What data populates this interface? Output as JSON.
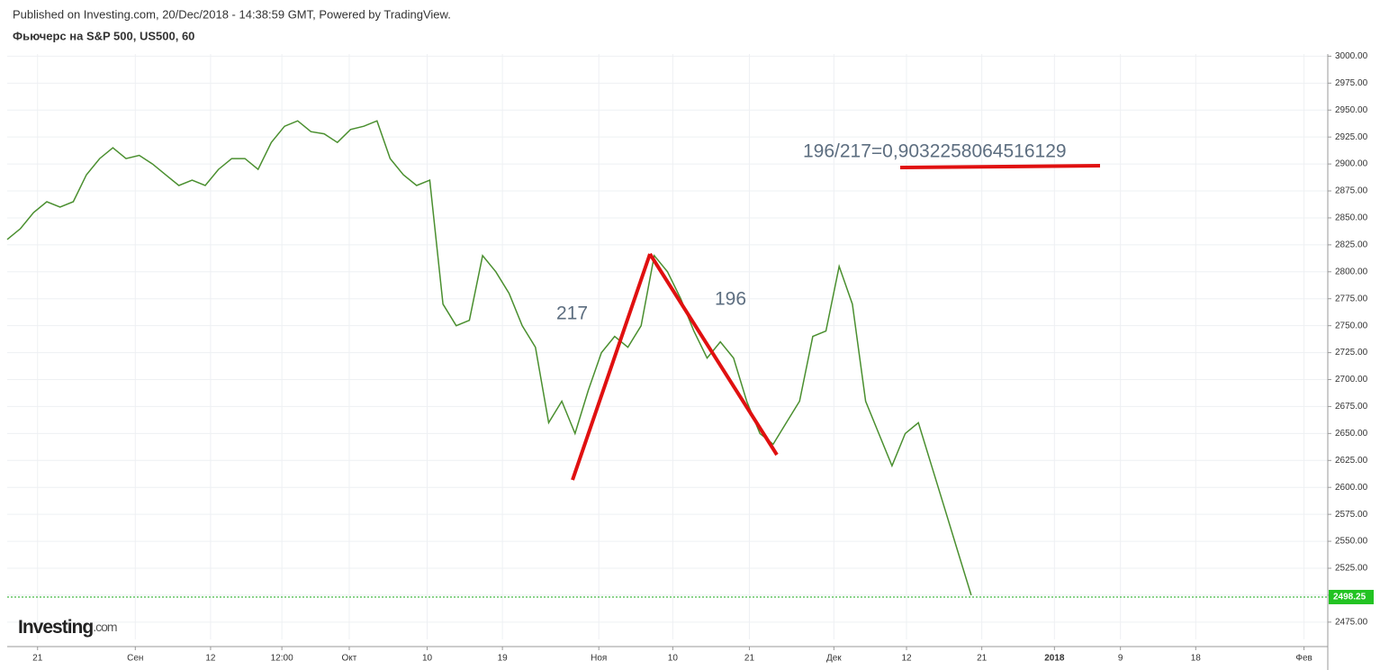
{
  "header": {
    "published": "Published on Investing.com, 20/Dec/2018 - 14:38:59 GMT, Powered by TradingView.",
    "instrument": "Фьючерс на S&P 500, US500, 60"
  },
  "logo": {
    "brand": "Investing",
    "suffix": ".com"
  },
  "chart_data": {
    "type": "line",
    "color": "#4a8f2f",
    "grid": true,
    "x": [
      0,
      1,
      2,
      3,
      4,
      5,
      6,
      7,
      8,
      9,
      10,
      11,
      12,
      13,
      14,
      15,
      16,
      17,
      18,
      19,
      20,
      21,
      22,
      23,
      24,
      25,
      26,
      27,
      28,
      29,
      30,
      31,
      32,
      33,
      34,
      35,
      36,
      37,
      38,
      39,
      40,
      41,
      42,
      43,
      44,
      45,
      46,
      47,
      48,
      49,
      50,
      51,
      52,
      53,
      54,
      55,
      56,
      57,
      58,
      59,
      60,
      61,
      62,
      63,
      64,
      65,
      66,
      67,
      68,
      69,
      70,
      71,
      72,
      73
    ],
    "values": [
      2830,
      2840,
      2855,
      2865,
      2860,
      2865,
      2890,
      2905,
      2915,
      2905,
      2908,
      2900,
      2890,
      2880,
      2885,
      2880,
      2895,
      2905,
      2905,
      2895,
      2920,
      2935,
      2940,
      2930,
      2928,
      2920,
      2932,
      2935,
      2940,
      2905,
      2890,
      2880,
      2885,
      2770,
      2750,
      2755,
      2815,
      2800,
      2780,
      2750,
      2730,
      2660,
      2680,
      2650,
      2690,
      2725,
      2740,
      2730,
      2750,
      2815,
      2800,
      2775,
      2745,
      2720,
      2735,
      2720,
      2680,
      2650,
      2640,
      2660,
      2680,
      2740,
      2745,
      2805,
      2770,
      2680,
      2650,
      2620,
      2650,
      2660,
      2620,
      2580,
      2540,
      2500
    ],
    "xlim": [
      0,
      100
    ],
    "ylim": [
      2459,
      3002
    ],
    "xticks": [
      {
        "value": 2.3,
        "label": "21"
      },
      {
        "value": 9.7,
        "label": "Сен"
      },
      {
        "value": 15.4,
        "label": "12"
      },
      {
        "value": 20.8,
        "label": "12:00"
      },
      {
        "value": 25.9,
        "label": "Окт"
      },
      {
        "value": 31.8,
        "label": "10"
      },
      {
        "value": 37.5,
        "label": "19"
      },
      {
        "value": 44.8,
        "label": "Ноя"
      },
      {
        "value": 50.4,
        "label": "10"
      },
      {
        "value": 56.2,
        "label": "21"
      },
      {
        "value": 62.6,
        "label": "Дек"
      },
      {
        "value": 68.1,
        "label": "12"
      },
      {
        "value": 73.8,
        "label": "21"
      },
      {
        "value": 79.3,
        "label": "2018"
      },
      {
        "value": 84.3,
        "label": "9"
      },
      {
        "value": 90.0,
        "label": "18"
      },
      {
        "value": 98.2,
        "label": "Фев"
      }
    ],
    "yticks": [
      {
        "value": 2475,
        "label": "2475.00"
      },
      {
        "value": 2500,
        "label": "2500.00"
      },
      {
        "value": 2525,
        "label": "2525.00"
      },
      {
        "value": 2550,
        "label": "2550.00"
      },
      {
        "value": 2575,
        "label": "2575.00"
      },
      {
        "value": 2600,
        "label": "2600.00"
      },
      {
        "value": 2625,
        "label": "2625.00"
      },
      {
        "value": 2650,
        "label": "2650.00"
      },
      {
        "value": 2675,
        "label": "2675.00"
      },
      {
        "value": 2700,
        "label": "2700.00"
      },
      {
        "value": 2725,
        "label": "2725.00"
      },
      {
        "value": 2750,
        "label": "2750.00"
      },
      {
        "value": 2775,
        "label": "2775.00"
      },
      {
        "value": 2800,
        "label": "2800.00"
      },
      {
        "value": 2825,
        "label": "2825.00"
      },
      {
        "value": 2850,
        "label": "2850.00"
      },
      {
        "value": 2875,
        "label": "2875.00"
      },
      {
        "value": 2900,
        "label": "2900.00"
      },
      {
        "value": 2925,
        "label": "2925.00"
      },
      {
        "value": 2950,
        "label": "2950.00"
      },
      {
        "value": 2975,
        "label": "2975.00"
      },
      {
        "value": 3000,
        "label": "3000.00"
      }
    ],
    "last_price": 2498.25,
    "annotations": [
      "217",
      "196",
      "196/217=0,9032258064516129"
    ]
  }
}
